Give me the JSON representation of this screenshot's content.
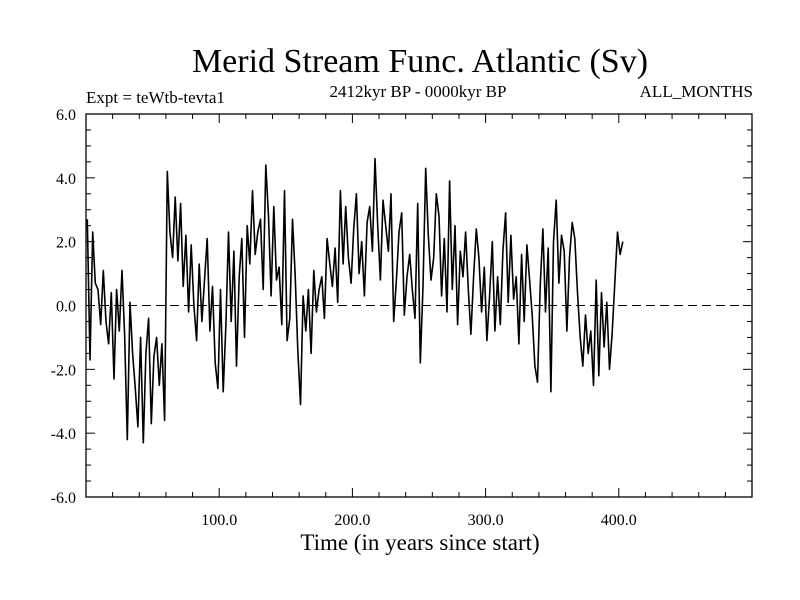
{
  "chart_data": {
    "type": "line",
    "title": "Merid Stream Func. Atlantic (Sv)",
    "subtitle_left": "Expt = teWtb-tevta1",
    "subtitle_center": "2412kyr BP - 0000kyr BP",
    "subtitle_right": "ALL_MONTHS",
    "xlabel": "Time (in years since start)",
    "ylabel": "",
    "xlim": [
      0,
      500
    ],
    "ylim": [
      -6,
      6
    ],
    "x_ticks": [
      100,
      200,
      300,
      400
    ],
    "x_tick_labels": [
      "100.0",
      "200.0",
      "300.0",
      "400.0"
    ],
    "y_ticks": [
      -6,
      -4,
      -2,
      0,
      2,
      4,
      6
    ],
    "y_tick_labels": [
      "-6.0",
      "-4.0",
      "-2.0",
      "0.0",
      "2.0",
      "4.0",
      "6.0"
    ],
    "zero_line": {
      "y": 0,
      "style": "dashed"
    },
    "series": [
      {
        "name": "Merid Stream Func.",
        "x_start": 1,
        "x_step": 2,
        "values": [
          2.7,
          -1.7,
          2.3,
          0.7,
          0.5,
          -0.6,
          1.1,
          -0.5,
          -1.2,
          0.4,
          -2.3,
          0.5,
          -0.8,
          1.1,
          -0.9,
          -4.2,
          0.1,
          -1.5,
          -2.6,
          -3.8,
          -1.0,
          -4.3,
          -1.5,
          -0.4,
          -3.7,
          -1.6,
          -1.0,
          -2.5,
          -1.2,
          -3.6,
          4.2,
          2.3,
          1.5,
          3.4,
          1.4,
          3.2,
          0.6,
          2.2,
          -0.2,
          1.9,
          0.0,
          -1.1,
          1.3,
          -0.5,
          0.8,
          2.1,
          -0.8,
          0.6,
          -1.8,
          -2.6,
          0.5,
          -2.7,
          -0.6,
          2.3,
          -0.5,
          1.7,
          -1.9,
          0.9,
          2.1,
          -1.0,
          2.5,
          1.3,
          3.6,
          1.6,
          2.3,
          2.7,
          0.5,
          4.4,
          2.8,
          0.3,
          3.1,
          0.8,
          1.2,
          -0.6,
          3.6,
          -1.1,
          -0.4,
          2.7,
          1.0,
          -1.4,
          -3.1,
          0.3,
          -0.8,
          0.5,
          -1.5,
          1.1,
          -0.2,
          0.5,
          0.9,
          -0.4,
          2.1,
          1.3,
          0.6,
          1.8,
          0.1,
          3.6,
          1.3,
          3.1,
          1.5,
          0.7,
          2.4,
          3.5,
          1.0,
          2.0,
          0.3,
          2.6,
          3.1,
          1.7,
          4.6,
          2.5,
          0.8,
          3.3,
          2.5,
          1.7,
          3.5,
          -0.5,
          0.8,
          2.3,
          2.9,
          -0.3,
          0.9,
          1.6,
          0.5,
          -0.4,
          3.2,
          -1.8,
          0.6,
          4.3,
          2.2,
          0.8,
          1.5,
          3.5,
          2.8,
          0.3,
          2.1,
          -0.2,
          3.9,
          0.5,
          2.5,
          -0.6,
          1.7,
          0.9,
          2.3,
          0.5,
          -0.9,
          0.9,
          2.4,
          1.5,
          -0.2,
          1.2,
          -1.1,
          0.3,
          2.0,
          -0.8,
          0.9,
          -0.6,
          1.7,
          2.9,
          0.1,
          2.2,
          0.2,
          0.9,
          -1.2,
          1.6,
          -0.5,
          1.9,
          0.8,
          -0.3,
          -1.9,
          -2.4,
          0.6,
          2.4,
          -0.2,
          1.8,
          -2.7,
          2.0,
          3.3,
          0.7,
          2.2,
          1.7,
          -0.8,
          1.5,
          2.6,
          2.1,
          0.4,
          -1.0,
          -1.9,
          -0.3,
          -1.5,
          -0.8,
          -2.5,
          0.8,
          -2.2,
          0.4,
          -1.3,
          0.1,
          -2.0,
          -0.9,
          0.7,
          2.3,
          1.6,
          2.0
        ]
      }
    ]
  }
}
